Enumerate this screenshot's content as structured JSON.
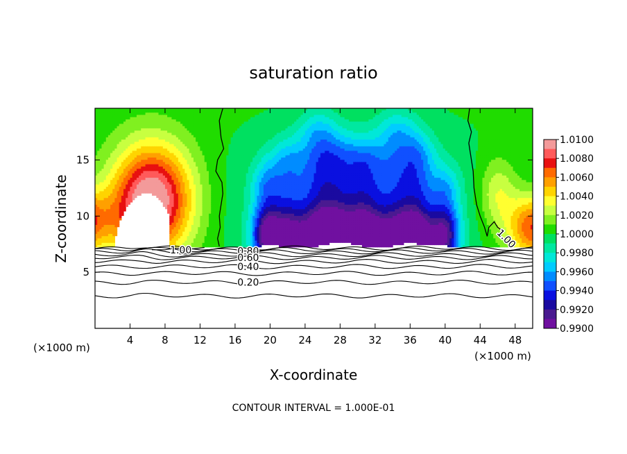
{
  "chart_data": {
    "type": "heatmap",
    "title": "saturation ratio",
    "xlabel": "X-coordinate",
    "ylabel": "Z-coordinate",
    "x_unit": "(×1000 m)",
    "x_ticks": [
      4,
      8,
      12,
      16,
      20,
      24,
      28,
      32,
      36,
      40,
      44,
      48
    ],
    "y_ticks": [
      5,
      10,
      15
    ],
    "xlim": [
      0,
      50
    ],
    "ylim": [
      0,
      19.6
    ],
    "colorbar_ticks": [
      "1.0100",
      "1.0080",
      "1.0060",
      "1.0040",
      "1.0020",
      "1.0000",
      "0.9980",
      "0.9960",
      "0.9940",
      "0.9920",
      "0.9900"
    ],
    "colorbar_range": [
      0.99,
      1.01
    ],
    "colorbar_colors": [
      "#f39a9a",
      "#ff5a5a",
      "#e81010",
      "#ff6a00",
      "#ffa000",
      "#ffd400",
      "#ffff30",
      "#c8ff40",
      "#80f020",
      "#20dc00",
      "#00e060",
      "#00e8a0",
      "#00e8d8",
      "#00ccff",
      "#008cff",
      "#1050ff",
      "#0a10e0",
      "#1a0aa0",
      "#4a1a90",
      "#7010a0"
    ],
    "contour_interval": "CONTOUR INTERVAL = 1.000E-01",
    "contour_labels": [
      {
        "text": "1.00",
        "x": 9.8,
        "z": 7.0
      },
      {
        "text": "1.00",
        "x": 47.0,
        "z": 8.0
      },
      {
        "text": "0.80",
        "x": 17.5,
        "z": 6.9
      },
      {
        "text": "0.60",
        "x": 17.5,
        "z": 6.3
      },
      {
        "text": "0.40",
        "x": 17.5,
        "z": 5.5
      },
      {
        "text": "0.20",
        "x": 17.5,
        "z": 4.1
      }
    ]
  }
}
